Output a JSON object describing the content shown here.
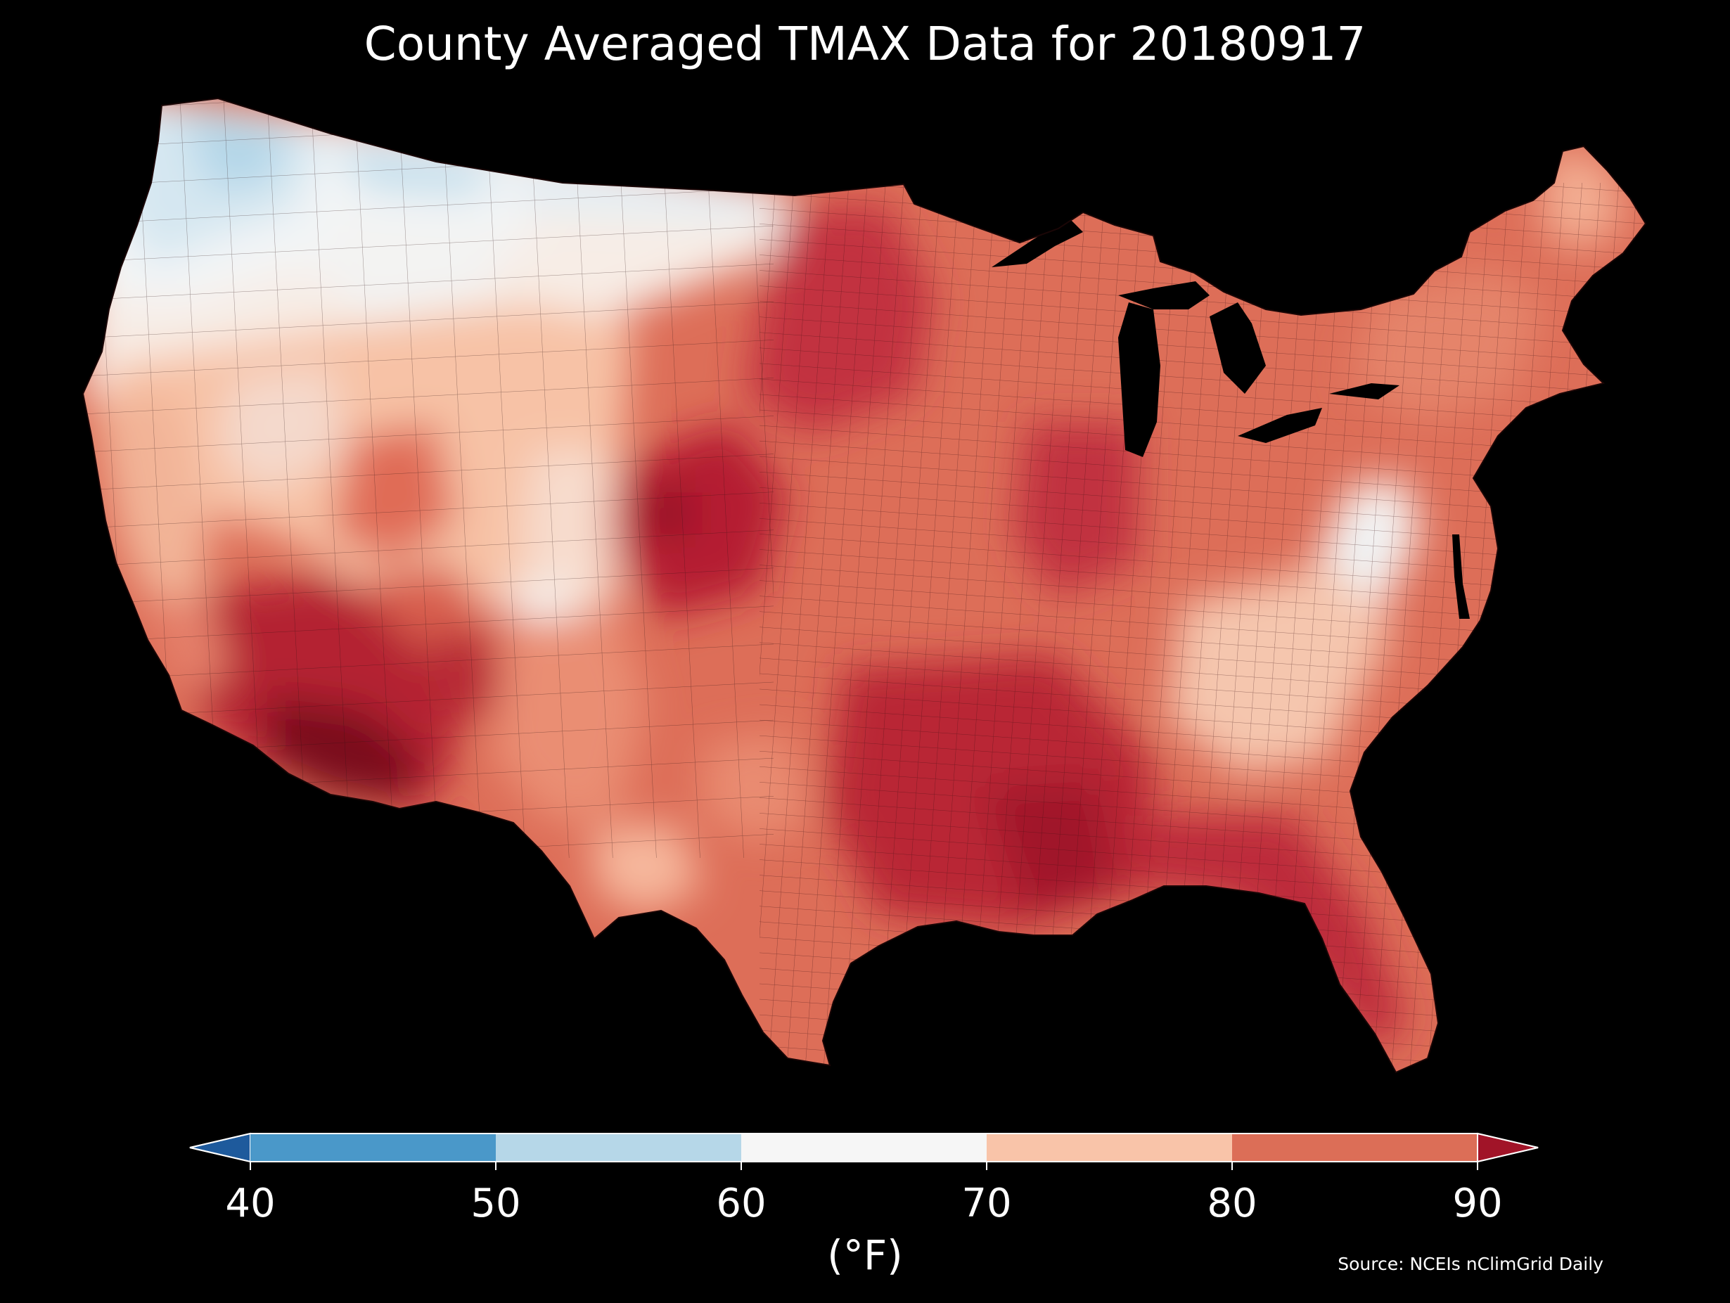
{
  "title": "County Averaged TMAX Data for 20180917",
  "colorbar": {
    "unit_label": "(°F)",
    "ticks": [
      "40",
      "50",
      "60",
      "70",
      "80",
      "90"
    ],
    "bins": [
      {
        "from": 40,
        "to": 50,
        "color": "#4a98c9"
      },
      {
        "from": 50,
        "to": 60,
        "color": "#b6d7e8"
      },
      {
        "from": 60,
        "to": 70,
        "color": "#f6f6f6"
      },
      {
        "from": 70,
        "to": 80,
        "color": "#f9c4a9"
      },
      {
        "from": 80,
        "to": 90,
        "color": "#dc6e57"
      }
    ],
    "under_color": "#1e5a9c",
    "over_color": "#a11428",
    "extend": "both"
  },
  "source": "Source: NCEIs nClimGrid Daily",
  "map": {
    "region": "Contiguous United States",
    "background": "#000000",
    "land_default": "#dd6e58"
  }
}
